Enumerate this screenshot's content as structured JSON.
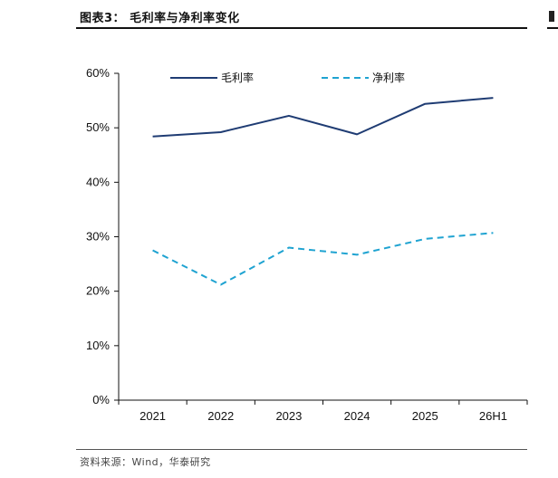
{
  "header": {
    "title": "图表3：  毛利率与净利率变化"
  },
  "footer": {
    "source": "资料来源：Wind，华泰研究"
  },
  "chart_data": {
    "type": "line",
    "title": "图表3：  毛利率与净利率变化",
    "x": [
      "2021",
      "2022",
      "2023",
      "2024",
      "2025",
      "26H1"
    ],
    "y_ticks": [
      "0%",
      "10%",
      "20%",
      "30%",
      "40%",
      "50%",
      "60%"
    ],
    "ylim": [
      0,
      60
    ],
    "ylabel": "",
    "xlabel": "",
    "grid": false,
    "legend_position": "top",
    "series": [
      {
        "name": "毛利率",
        "style": "solid",
        "color": "#1f3c73",
        "values": [
          48.4,
          49.2,
          52.2,
          48.8,
          54.4,
          55.5
        ]
      },
      {
        "name": "净利率",
        "style": "dashed",
        "color": "#1fa3d1",
        "values": [
          27.5,
          21.2,
          28.0,
          26.7,
          29.6,
          30.7
        ]
      }
    ]
  }
}
